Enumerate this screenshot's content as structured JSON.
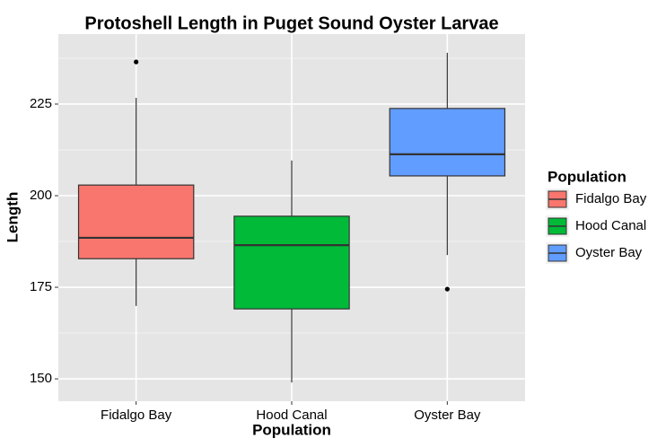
{
  "chart_data": {
    "type": "box",
    "title": "Protoshell Length in Puget Sound Oyster Larvae",
    "x_label": "Population",
    "y_label": "Length",
    "legend_title": "Population",
    "legend": "right",
    "categories": [
      "Fidalgo Bay",
      "Hood Canal",
      "Oyster Bay"
    ],
    "series": [
      {
        "name": "Fidalgo Bay",
        "color": "#F8766D",
        "whisker_low": 169.9,
        "q1": 182.8,
        "median": 188.5,
        "q3": 202.9,
        "whisker_high": 226.7,
        "outliers": [
          236.5
        ]
      },
      {
        "name": "Hood Canal",
        "color": "#00BA38",
        "whisker_low": 149.0,
        "q1": 169.1,
        "median": 186.5,
        "q3": 194.4,
        "whisker_high": 209.6,
        "outliers": []
      },
      {
        "name": "Oyster Bay",
        "color": "#619CFF",
        "whisker_low": 183.8,
        "q1": 205.4,
        "median": 211.3,
        "q3": 223.8,
        "whisker_high": 239.0,
        "outliers": [
          174.5
        ]
      }
    ],
    "ylim": [
      143.9,
      244.1
    ],
    "yticks": [
      150,
      175,
      200,
      225
    ],
    "grid": true,
    "minor_grid": true
  }
}
